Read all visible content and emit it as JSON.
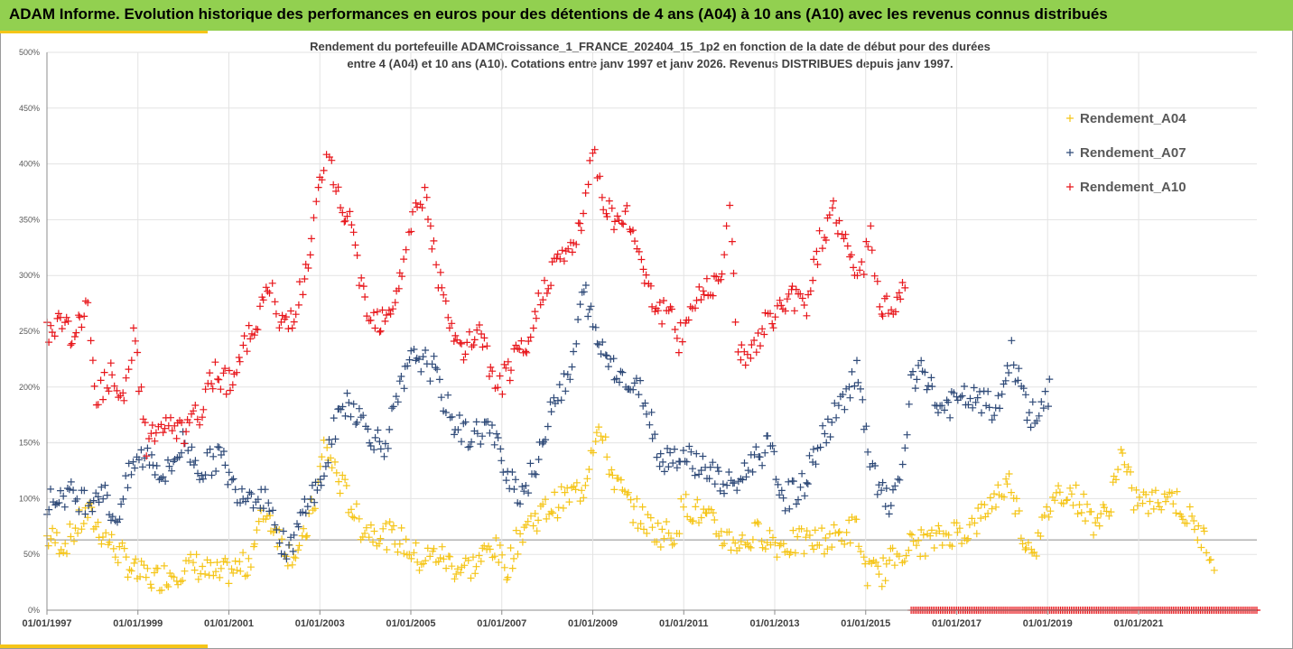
{
  "header": {
    "title": "ADAM Informe. Evolution historique des performances en euros pour des détentions de 4 ans (A04) à 10 ans (A10) avec les revenus connus distribués"
  },
  "colors": {
    "banner": "#92d050",
    "accent": "#f5c518",
    "A04": "#f5c518",
    "A07": "#2f4a78",
    "A10": "#e8161b"
  },
  "chart_data": {
    "type": "scatter",
    "title_line1": "Rendement du portefeuille ADAMCroissance_1_FRANCE_202404_15_1p2  en fonction de la date de début pour des durées",
    "title_line2": "entre 4 (A04) et 10 ans (A10). Cotations entre janv 1997 et janv 2026. Revenus DISTRIBUES depuis janv 1997.",
    "xlabel": "",
    "ylabel": "",
    "xlim": [
      1997.0,
      2023.6
    ],
    "ylim": [
      0,
      500
    ],
    "yticks": [
      "0%",
      "50%",
      "100%",
      "150%",
      "200%",
      "250%",
      "300%",
      "350%",
      "400%",
      "450%",
      "500%"
    ],
    "xticks": [
      {
        "year": 1997,
        "label": "01/01/1997"
      },
      {
        "year": 1999,
        "label": "01/01/1999"
      },
      {
        "year": 2001,
        "label": "01/01/2001"
      },
      {
        "year": 2003,
        "label": "01/01/2003"
      },
      {
        "year": 2005,
        "label": "01/01/2005"
      },
      {
        "year": 2007,
        "label": "01/01/2007"
      },
      {
        "year": 2009,
        "label": "01/01/2009"
      },
      {
        "year": 2011,
        "label": "01/01/2011"
      },
      {
        "year": 2013,
        "label": "01/01/2013"
      },
      {
        "year": 2015,
        "label": "01/01/2015"
      },
      {
        "year": 2017,
        "label": "01/01/2017"
      },
      {
        "year": 2019,
        "label": "01/01/2019"
      },
      {
        "year": 2021,
        "label": "01/01/2021"
      }
    ],
    "reference_line": 63,
    "legend_position": "top-right",
    "series": [
      {
        "name": "Rendement_A04",
        "color": "#f5c518",
        "x": [
          1997.0,
          1997.4,
          1997.9,
          1998.2,
          1998.6,
          1999.0,
          1999.4,
          1999.8,
          2000.3,
          2000.7,
          2001.0,
          2001.4,
          2001.8,
          2002.3,
          2002.6,
          2002.9,
          2003.1,
          2003.5,
          2003.9,
          2004.3,
          2004.8,
          2005.2,
          2005.6,
          2006.0,
          2006.4,
          2006.8,
          2007.1,
          2007.5,
          2007.9,
          2008.3,
          2008.8,
          2009.1,
          2009.4,
          2009.7,
          2010.0,
          2010.4,
          2010.8,
          2011.0,
          2011.3,
          2011.6,
          2011.9,
          2012.3,
          2012.7,
          2013.1,
          2013.5,
          2013.9,
          2014.3,
          2014.8,
          2015.0,
          2015.3,
          2015.6,
          2015.8,
          2016.1,
          2016.5,
          2016.9,
          2017.3,
          2017.6,
          2017.9,
          2018.2,
          2018.5,
          2018.8,
          2019.1,
          2019.4,
          2019.7,
          2020.0,
          2020.3,
          2020.6,
          2020.9,
          2021.3,
          2021.6,
          2021.9,
          2022.2,
          2022.5,
          2022.7
        ],
        "y": [
          65,
          60,
          87,
          70,
          50,
          32,
          28,
          35,
          40,
          30,
          35,
          40,
          90,
          52,
          55,
          100,
          147,
          110,
          75,
          70,
          62,
          45,
          50,
          38,
          40,
          58,
          38,
          75,
          88,
          98,
          110,
          168,
          125,
          100,
          85,
          70,
          68,
          95,
          88,
          78,
          65,
          60,
          70,
          58,
          60,
          62,
          65,
          74,
          35,
          32,
          45,
          55,
          60,
          62,
          70,
          72,
          88,
          105,
          115,
          60,
          60,
          102,
          108,
          98,
          80,
          85,
          140,
          100,
          95,
          105,
          95,
          75,
          60,
          45
        ]
      },
      {
        "name": "Rendement_A07",
        "color": "#2f4a78",
        "x": [
          1997.0,
          1997.4,
          1997.9,
          1998.2,
          1998.5,
          1998.9,
          1999.2,
          1999.6,
          2000.0,
          2000.4,
          2000.8,
          2001.1,
          2001.5,
          2001.9,
          2002.1,
          2002.4,
          2002.7,
          2003.0,
          2003.3,
          2003.6,
          2004.0,
          2004.4,
          2004.8,
          2005.1,
          2005.5,
          2005.9,
          2006.3,
          2006.7,
          2007.0,
          2007.4,
          2007.8,
          2008.1,
          2008.5,
          2008.8,
          2009.1,
          2009.4,
          2009.8,
          2010.1,
          2010.5,
          2010.8,
          2011.2,
          2011.6,
          2011.9,
          2012.2,
          2012.6,
          2012.9,
          2013.2,
          2013.6,
          2014.0,
          2014.4,
          2014.8,
          2015.1,
          2015.3,
          2015.6,
          2015.8,
          2016.0,
          2016.3,
          2016.6,
          2016.9,
          2017.3,
          2017.6,
          2017.9,
          2018.2,
          2018.6,
          2018.9,
          2019.1
        ],
        "y": [
          95,
          105,
          98,
          110,
          80,
          130,
          140,
          120,
          150,
          125,
          140,
          110,
          105,
          100,
          60,
          55,
          100,
          110,
          160,
          190,
          165,
          145,
          200,
          230,
          215,
          170,
          155,
          165,
          135,
          105,
          130,
          190,
          205,
          290,
          240,
          225,
          200,
          195,
          135,
          140,
          135,
          125,
          110,
          115,
          140,
          145,
          100,
          110,
          150,
          180,
          215,
          130,
          105,
          95,
          130,
          200,
          215,
          180,
          185,
          190,
          185,
          180,
          230,
          175,
          175,
          210
        ],
        "sparse": true
      },
      {
        "name": "Rendement_A10",
        "color": "#e8161b",
        "x": [
          1997.0,
          1997.3,
          1997.6,
          1997.9,
          1998.1,
          1998.4,
          1998.7,
          1998.9,
          1999.2,
          1999.5,
          1999.8,
          2000.1,
          2000.4,
          2000.7,
          2001.0,
          2001.3,
          2001.6,
          2001.9,
          2002.1,
          2002.4,
          2002.7,
          2003.0,
          2003.2,
          2003.4,
          2003.7,
          2004.0,
          2004.3,
          2004.6,
          2004.9,
          2005.1,
          2005.3,
          2005.6,
          2005.9,
          2006.2,
          2006.5,
          2006.8,
          2007.0,
          2007.3,
          2007.6,
          2007.9,
          2008.2,
          2008.5,
          2008.8,
          2009.0,
          2009.2,
          2009.5,
          2009.8,
          2010.1,
          2010.4,
          2010.7,
          2010.9,
          2011.2,
          2011.5,
          2011.8,
          2012.0,
          2012.2,
          2012.5,
          2012.8,
          2013.1,
          2013.4,
          2013.7,
          2014.0,
          2014.3,
          2014.6,
          2014.9,
          2015.1,
          2015.3,
          2015.6,
          2015.9
        ],
        "y": [
          250,
          260,
          245,
          270,
          190,
          210,
          180,
          250,
          150,
          165,
          160,
          160,
          180,
          215,
          205,
          230,
          260,
          290,
          255,
          265,
          300,
          380,
          405,
          370,
          340,
          275,
          260,
          275,
          320,
          360,
          375,
          300,
          245,
          230,
          255,
          205,
          205,
          225,
          235,
          290,
          310,
          325,
          345,
          420,
          370,
          350,
          350,
          310,
          270,
          265,
          240,
          275,
          290,
          300,
          355,
          235,
          230,
          255,
          270,
          280,
          275,
          330,
          360,
          320,
          300,
          345,
          270,
          275,
          295
        ]
      },
      {
        "name": "Rendement_A10_zero",
        "color": "#e8161b",
        "x_start": 2016.0,
        "x_end": 2023.6,
        "value": 0
      }
    ]
  },
  "legend": [
    {
      "label": "Rendement_A04",
      "color": "#f5c518"
    },
    {
      "label": "Rendement_A07",
      "color": "#2f4a78"
    },
    {
      "label": "Rendement_A10",
      "color": "#e8161b"
    }
  ]
}
